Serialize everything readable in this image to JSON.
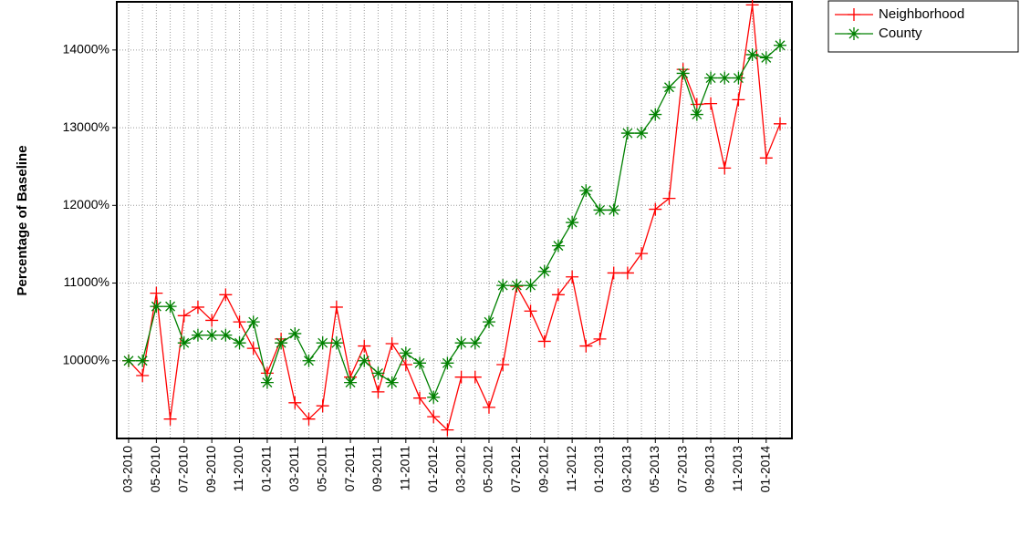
{
  "chart_data": {
    "type": "line",
    "y_label": "Percentage of Baseline",
    "categories": [
      "03-2010",
      null,
      "05-2010",
      null,
      "07-2010",
      null,
      "09-2010",
      null,
      "11-2010",
      null,
      "01-2011",
      null,
      "03-2011",
      null,
      "05-2011",
      null,
      "07-2011",
      null,
      "09-2011",
      null,
      "11-2011",
      null,
      "01-2012",
      null,
      "03-2012",
      null,
      "05-2012",
      null,
      "07-2012",
      null,
      "09-2012",
      null,
      "11-2012",
      null,
      "01-2013",
      null,
      "03-2013",
      null,
      "05-2013",
      null,
      "07-2013",
      null,
      "09-2013",
      null,
      "11-2013",
      null,
      "01-2014",
      null
    ],
    "series": [
      {
        "name": "Neighborhood",
        "color": "#ff0000",
        "marker": "plus",
        "values": [
          10000,
          9810,
          10870,
          9250,
          10580,
          10690,
          10520,
          10850,
          10500,
          10160,
          9840,
          10280,
          9460,
          9250,
          9420,
          10690,
          9790,
          10190,
          9600,
          10220,
          9950,
          9520,
          9280,
          9110,
          9790,
          9790,
          9400,
          9950,
          10960,
          10640,
          10250,
          10850,
          11080,
          10190,
          10280,
          11130,
          11130,
          11380,
          11950,
          12090,
          13750,
          13300,
          13310,
          12480,
          13360,
          14580,
          12610,
          13050
        ]
      },
      {
        "name": "County",
        "color": "#008000",
        "marker": "asterisk",
        "values": [
          10000,
          10000,
          10700,
          10700,
          10230,
          10330,
          10330,
          10330,
          10230,
          10500,
          9720,
          10230,
          10350,
          10000,
          10230,
          10230,
          9720,
          10000,
          9840,
          9720,
          10100,
          9970,
          9530,
          9970,
          10230,
          10230,
          10500,
          10970,
          10970,
          10970,
          11150,
          11480,
          11780,
          12190,
          11940,
          11940,
          12930,
          12930,
          13170,
          13520,
          13700,
          13170,
          13640,
          13640,
          13640,
          13940,
          13900,
          14060
        ]
      }
    ],
    "ylim": [
      9000,
      14620
    ],
    "yticks": [
      {
        "value": 10000,
        "label": "10000%"
      },
      {
        "value": 11000,
        "label": "11000%"
      },
      {
        "value": 12000,
        "label": "12000%"
      },
      {
        "value": 13000,
        "label": "13000%"
      },
      {
        "value": 14000,
        "label": "14000%"
      }
    ],
    "grid": true,
    "legend": "top-right"
  }
}
